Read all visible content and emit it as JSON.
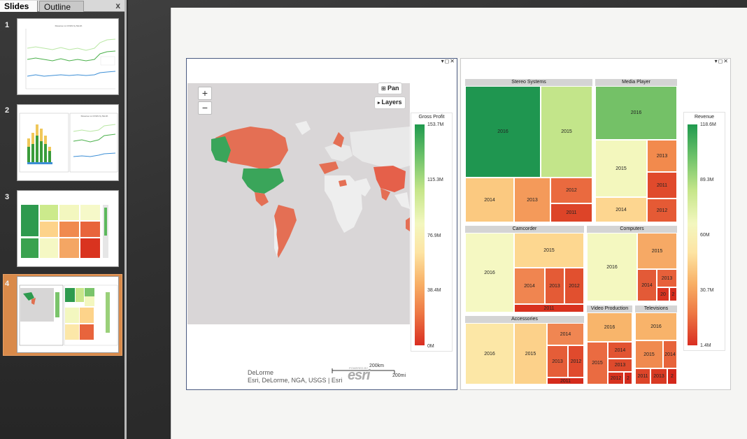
{
  "pane": {
    "tabs": [
      {
        "label": "Slides"
      },
      {
        "label": "Outline"
      }
    ],
    "close": "x"
  },
  "slides": [
    {
      "number": "1",
      "thumb": "line",
      "thumb_title": "Revenue vs COGS by Month"
    },
    {
      "number": "2",
      "thumb": "bar-line",
      "thumb_title": "Revenue vs COGS by Month"
    },
    {
      "number": "3",
      "thumb": "treemap"
    },
    {
      "number": "4",
      "thumb": "map-treemap",
      "selected": true
    }
  ],
  "map": {
    "zoom_in": "+",
    "zoom_out": "−",
    "pan_label": "Pan",
    "layers_label": "Layers",
    "legend_title": "Gross Profit",
    "legend_ticks": [
      "153.7M",
      "115.3M",
      "76.9M",
      "38.4M",
      "0M"
    ],
    "attribution_line1": "DeLorme",
    "attribution_line2": "Esri, DeLorme, NGA, USGS | Esri",
    "scale_km": "200km",
    "scale_mi": "200mi",
    "esri_logo": "esri",
    "esri_powered": "POWERED BY"
  },
  "treemap": {
    "legend_title": "Revenue",
    "legend_ticks": [
      "118.6M",
      "89.3M",
      "60M",
      "30.7M",
      "1.4M"
    ],
    "groups": [
      {
        "name": "Stereo Systems"
      },
      {
        "name": "Media Player"
      },
      {
        "name": "Camcorder"
      },
      {
        "name": "Computers"
      },
      {
        "name": "Accessories"
      },
      {
        "name": "Video Production"
      },
      {
        "name": "Televisions"
      }
    ],
    "cells": {
      "ss2016": "2016",
      "ss2015": "2015",
      "ss2014": "2014",
      "ss2013": "2013",
      "ss2012": "2012",
      "ss2011": "2011",
      "mp2016": "2016",
      "mp2015": "2015",
      "mp2013": "2013",
      "mp2011": "2011",
      "mp2014": "2014",
      "mp2012": "2012",
      "cc2016": "2016",
      "cc2015": "2015",
      "cc2014": "2014",
      "cc2013": "2013",
      "cc2012": "2012",
      "cc2011": "2011",
      "co2016": "2016",
      "co2015": "2015",
      "co2014": "2014",
      "co2013": "2013",
      "co20": "20",
      "co2": "2",
      "ac2016": "2016",
      "ac2015": "2015",
      "ac2014": "2014",
      "ac2013": "2013",
      "ac2012": "2012",
      "ac2011": "2011",
      "vp2016": "2016",
      "vp2015": "2015",
      "vp2014": "2014",
      "vp2013": "2013",
      "vp2012": "2012",
      "vp2": "2",
      "tv2016": "2016",
      "tv2015": "2015",
      "tv2014": "2014",
      "tv2011": "2011",
      "tv2013": "2013",
      "tv2": "2"
    }
  }
}
